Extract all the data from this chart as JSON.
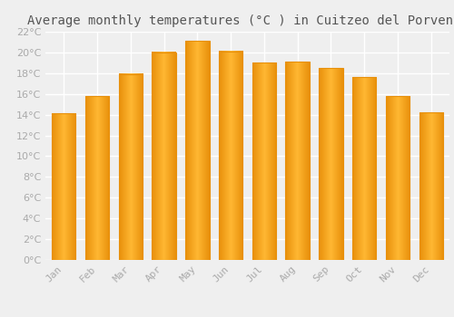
{
  "title": "Average monthly temperatures (°C ) in Cuitzeo del Porvenir",
  "months": [
    "Jan",
    "Feb",
    "Mar",
    "Apr",
    "May",
    "Jun",
    "Jul",
    "Aug",
    "Sep",
    "Oct",
    "Nov",
    "Dec"
  ],
  "values": [
    14.1,
    15.8,
    17.9,
    20.0,
    21.1,
    20.1,
    19.0,
    19.1,
    18.5,
    17.6,
    15.8,
    14.2
  ],
  "bar_color_center": "#FFB733",
  "bar_color_edge": "#E8900A",
  "background_color": "#EFEFEF",
  "grid_color": "#FFFFFF",
  "label_color": "#AAAAAA",
  "title_color": "#555555",
  "ylim": [
    0,
    22
  ],
  "ytick_step": 2,
  "title_fontsize": 10,
  "tick_fontsize": 8
}
